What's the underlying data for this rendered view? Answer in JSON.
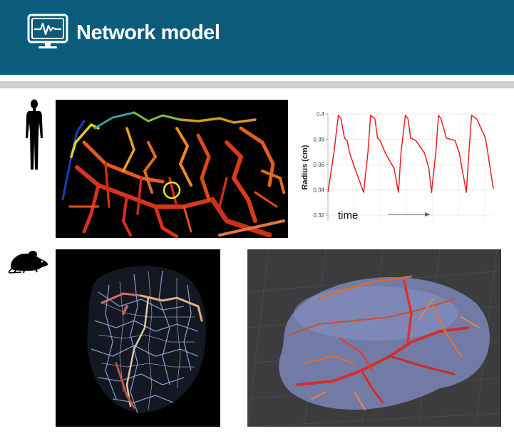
{
  "header": {
    "title": "Network model",
    "icon": "monitor-pulse-icon",
    "background_color": "#0b5b7d"
  },
  "rows": [
    {
      "subject_icon": "human-silhouette-icon",
      "panels": [
        "human-vessel-render",
        "radius-chart"
      ]
    },
    {
      "subject_icon": "mouse-silhouette-icon",
      "panels": [
        "mouse-vessel-network-render",
        "mouse-brain-vessel-render"
      ]
    }
  ],
  "chart_data": {
    "type": "line",
    "title": "",
    "xlabel": "time",
    "ylabel": "Radius (cm)",
    "ylim": [
      0.32,
      0.4
    ],
    "yticks": [
      "0.32",
      "0.34",
      "0.36",
      "0.38",
      "0.4"
    ],
    "x_axis_arrow": true,
    "grid": true,
    "series": [
      {
        "color": "#e8201e",
        "x": [
          0,
          0.07,
          0.12,
          0.15,
          0.19,
          0.22,
          0.25,
          0.31,
          0.41,
          0.46,
          0.49,
          0.54,
          0.57,
          0.6,
          0.66,
          0.76,
          0.81,
          0.84,
          0.89,
          0.92,
          0.95,
          1.01,
          1.11,
          1.16,
          1.19,
          1.24,
          1.27,
          1.3,
          1.36,
          1.46,
          1.51,
          1.54,
          1.59,
          1.62,
          1.65,
          1.71,
          1.81,
          1.9
        ],
        "y": [
          0.338,
          0.37,
          0.399,
          0.396,
          0.381,
          0.379,
          0.369,
          0.357,
          0.338,
          0.37,
          0.399,
          0.396,
          0.381,
          0.379,
          0.369,
          0.357,
          0.338,
          0.37,
          0.399,
          0.396,
          0.381,
          0.379,
          0.369,
          0.357,
          0.338,
          0.37,
          0.399,
          0.396,
          0.381,
          0.379,
          0.369,
          0.357,
          0.338,
          0.37,
          0.399,
          0.396,
          0.381,
          0.341
        ]
      }
    ]
  }
}
